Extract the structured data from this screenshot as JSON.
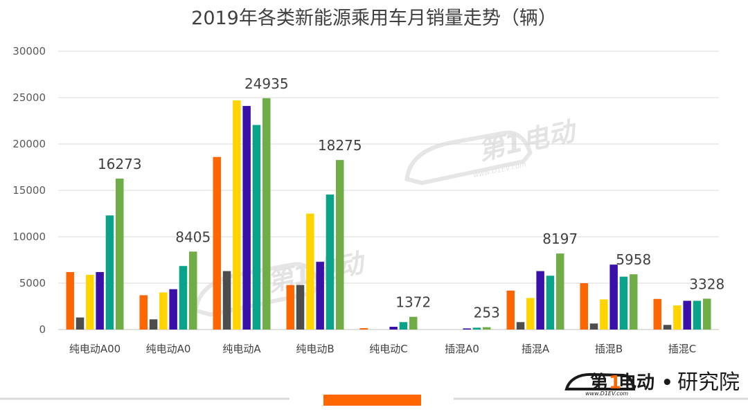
{
  "chart_data": {
    "type": "bar",
    "title": "2019年各类新能源乘用车月销量走势（辆）",
    "categories": [
      "纯电动A00",
      "纯电动A0",
      "纯电动A",
      "纯电动B",
      "纯电动C",
      "插混A0",
      "插混A",
      "插混B",
      "插混C"
    ],
    "ylim": [
      0,
      30000
    ],
    "yticks": [
      0,
      5000,
      10000,
      15000,
      20000,
      25000,
      30000
    ],
    "grid": true,
    "legend": "none",
    "series": [
      {
        "color": "#ff6600",
        "values": [
          6200,
          3700,
          18600,
          4800,
          150,
          0,
          4200,
          5000,
          3300
        ]
      },
      {
        "color": "#4d4d4d",
        "values": [
          1300,
          1100,
          6300,
          4800,
          0,
          0,
          800,
          650,
          500
        ]
      },
      {
        "color": "#ffd400",
        "values": [
          5900,
          4000,
          24700,
          12500,
          0,
          0,
          3400,
          3250,
          2600
        ]
      },
      {
        "color": "#3a11a8",
        "values": [
          6200,
          4350,
          24100,
          7300,
          300,
          120,
          6300,
          7000,
          3100
        ]
      },
      {
        "color": "#0aa38a",
        "values": [
          12300,
          6850,
          22050,
          14550,
          800,
          200,
          5800,
          5700,
          3100
        ]
      },
      {
        "color": "#70ad47",
        "values": [
          16273,
          8405,
          24935,
          18275,
          1372,
          253,
          8197,
          5958,
          3328
        ]
      }
    ],
    "data_labels": [
      "16273",
      "8405",
      "24935",
      "18275",
      "1372",
      "253",
      "8197",
      "5958",
      "3328"
    ]
  },
  "branding": {
    "logo_first": "第",
    "logo_one": "1",
    "logo_rest": "电动",
    "logo_dot": "•",
    "logo_suffix": "研究院",
    "logo_url": "www.D1EV.com",
    "accent_color": "#ff6600"
  }
}
